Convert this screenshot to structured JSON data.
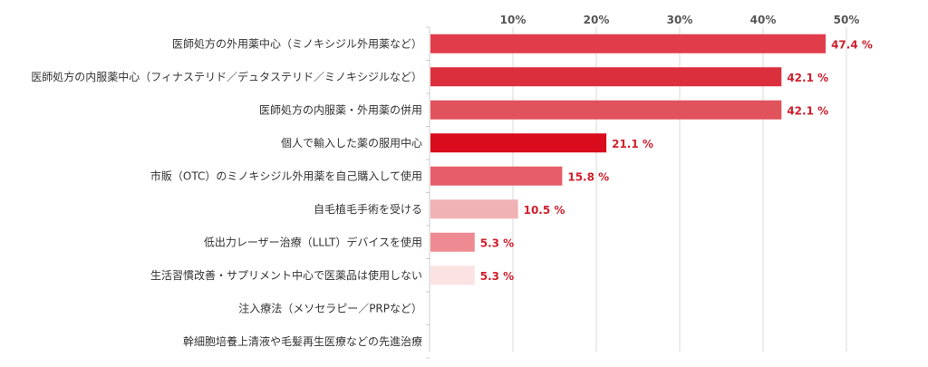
{
  "chart_data": {
    "type": "bar",
    "orientation": "horizontal",
    "categories": [
      "医師処方の外用薬中心（ミノキシジル外用薬など）",
      "医師処方の内服薬中心（フィナステリド／デュタステリド／ミノキシジルなど）",
      "医師処方の内服薬・外用薬の併用",
      "個人で輸入した薬の服用中心",
      "市販（OTC）のミノキシジル外用薬を自己購入して使用",
      "自毛植毛手術を受ける",
      "低出力レーザー治療（LLLT）デバイスを使用",
      "生活習慣改善・サプリメント中心で医薬品は使用しない",
      "注入療法（メソセラピー／PRPなど）",
      "幹細胞培養上清液や毛髪再生医療などの先進治療"
    ],
    "values": [
      47.4,
      42.1,
      42.1,
      21.1,
      15.8,
      10.5,
      5.3,
      5.3,
      0,
      0
    ],
    "value_labels": [
      "47.4 %",
      "42.1 %",
      "42.1 %",
      "21.1 %",
      "15.8 %",
      "10.5 %",
      "5.3 %",
      "5.3 %",
      "",
      ""
    ],
    "bar_colors": [
      "#e03c4a",
      "#dc2f3e",
      "#e0525c",
      "#d80c1c",
      "#e65e69",
      "#f0b2b5",
      "#ee8a92",
      "#fbe3e4",
      "#ffffff",
      "#ffffff"
    ],
    "xlim": [
      0,
      52
    ],
    "x_ticks": [
      10,
      20,
      30,
      40,
      50
    ],
    "x_tick_labels": [
      "10%",
      "20%",
      "30%",
      "40%",
      "50%"
    ],
    "grid": true,
    "title": "",
    "xlabel": "",
    "ylabel": ""
  },
  "colors": {
    "value_label": "#d0202e",
    "grid": "#d8d8d8"
  }
}
